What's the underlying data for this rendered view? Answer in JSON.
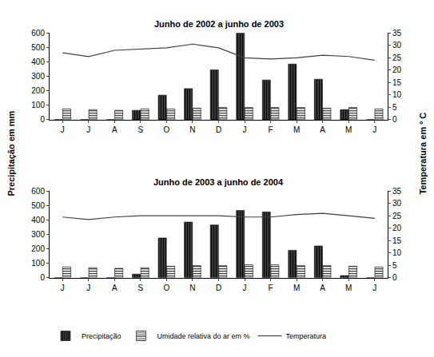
{
  "chart_data": [
    {
      "type": "bar",
      "title": "Junho de 2002 a junho de 2003",
      "y_label": "Precipitação em mm",
      "y2_label": "Temperatura em º C",
      "categories": [
        "J",
        "J",
        "A",
        "S",
        "O",
        "N",
        "D",
        "J",
        "F",
        "M",
        "A",
        "M",
        "J"
      ],
      "series": [
        {
          "name": "Precipitação",
          "type": "bar",
          "color": "#3a3a3a",
          "values": [
            0,
            0,
            0,
            65,
            170,
            215,
            345,
            600,
            275,
            385,
            280,
            70,
            0
          ]
        },
        {
          "name": "Umidade relativa do ar em %",
          "type": "bar",
          "color": "#f2f2f2",
          "values": [
            75,
            70,
            65,
            75,
            75,
            80,
            85,
            85,
            85,
            85,
            80,
            85,
            75
          ]
        },
        {
          "name": "Temperatura",
          "type": "line",
          "axis": "y2",
          "color": "#404040",
          "values": [
            27,
            25.5,
            28,
            28.5,
            29,
            30.5,
            29,
            25,
            24.5,
            25,
            26,
            25.5,
            24
          ]
        }
      ],
      "ylim": [
        0,
        600
      ],
      "yticks": [
        0,
        100,
        200,
        300,
        400,
        500,
        600
      ],
      "y2lim": [
        0,
        35
      ],
      "y2ticks": [
        0,
        5,
        10,
        15,
        20,
        25,
        30,
        35
      ],
      "grid": false,
      "legend": "bottom"
    },
    {
      "type": "bar",
      "title": "Junho de 2003 a junho de 2004",
      "categories": [
        "J",
        "J",
        "A",
        "S",
        "O",
        "N",
        "D",
        "J",
        "F",
        "M",
        "A",
        "M",
        "J"
      ],
      "series": [
        {
          "name": "Precipitação",
          "type": "bar",
          "color": "#3a3a3a",
          "values": [
            0,
            0,
            0,
            25,
            275,
            385,
            365,
            465,
            455,
            190,
            220,
            15,
            0
          ]
        },
        {
          "name": "Umidade relativa do ar em %",
          "type": "bar",
          "color": "#f2f2f2",
          "values": [
            75,
            70,
            65,
            70,
            80,
            85,
            85,
            90,
            90,
            85,
            85,
            80,
            75
          ]
        },
        {
          "name": "Temperatura",
          "type": "line",
          "axis": "y2",
          "color": "#404040",
          "values": [
            24.5,
            23.5,
            24.5,
            25,
            25,
            25,
            25,
            24.5,
            24.5,
            25.5,
            26,
            25,
            24
          ]
        }
      ],
      "ylim": [
        0,
        600
      ],
      "yticks": [
        0,
        100,
        200,
        300,
        400,
        500,
        600
      ],
      "y2lim": [
        0,
        35
      ],
      "y2ticks": [
        0,
        5,
        10,
        15,
        20,
        25,
        30,
        35
      ],
      "grid": false
    }
  ]
}
